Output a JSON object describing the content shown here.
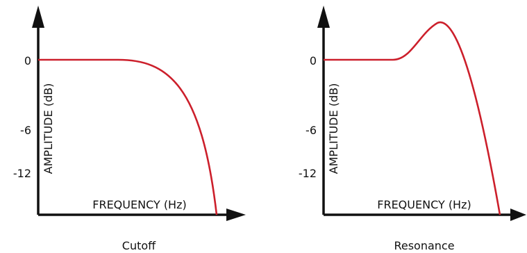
{
  "colors": {
    "curve": "#cc1f2b",
    "axis": "#111111",
    "background": "#ffffff"
  },
  "panels": [
    {
      "caption": "Cutoff",
      "x_axis_label": "FREQUENCY (Hz)",
      "y_axis_label": "AMPLITUDE (dB)",
      "y_ticks": [
        "0",
        "-6",
        "-12"
      ],
      "curve_shape": "low-pass rolloff"
    },
    {
      "caption": "Resonance",
      "x_axis_label": "FREQUENCY (Hz)",
      "y_axis_label": "AMPLITUDE (dB)",
      "y_ticks": [
        "0",
        "-6",
        "-12"
      ],
      "curve_shape": "low-pass rolloff with resonant peak"
    }
  ]
}
